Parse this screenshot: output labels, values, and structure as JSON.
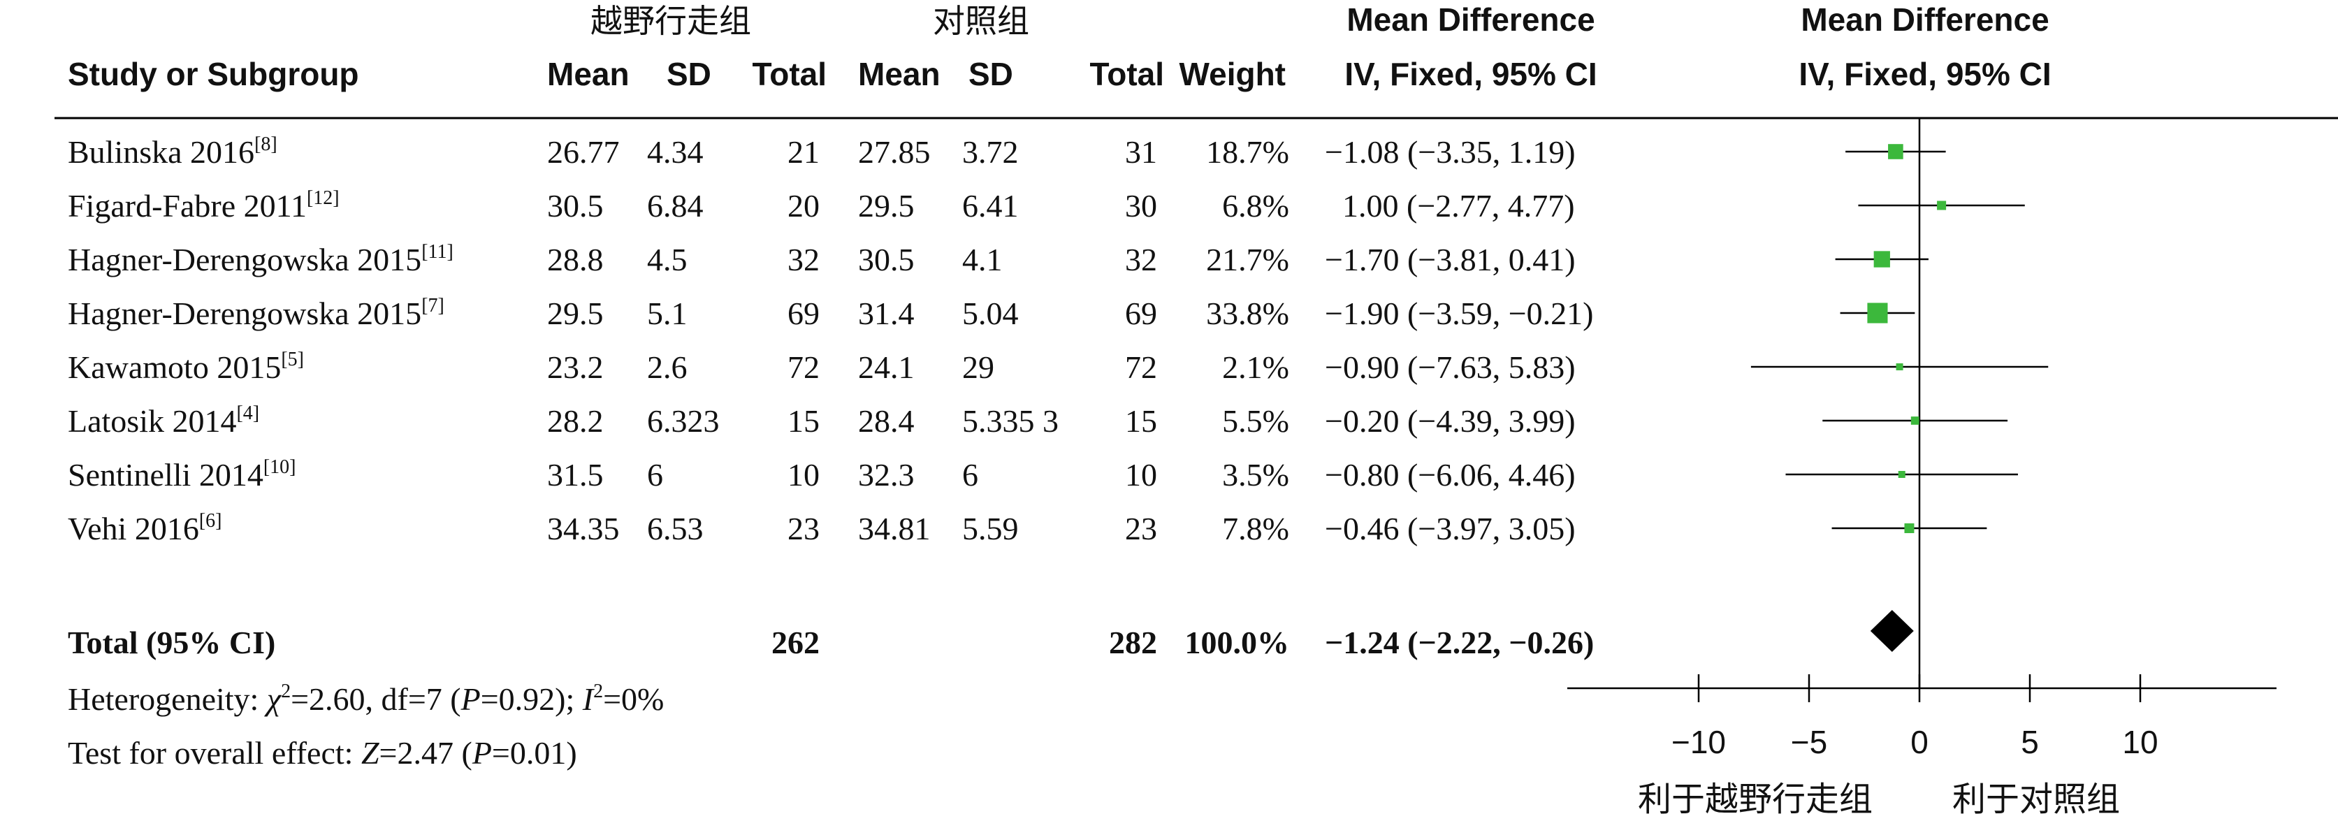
{
  "headers": {
    "group_exp": "越野行走组",
    "group_ctrl": "对照组",
    "study": "Study or Subgroup",
    "mean": "Mean",
    "sd": "SD",
    "total": "Total",
    "weight": "Weight",
    "md_title": "Mean Difference",
    "md_method": "IV, Fixed, 95% CI"
  },
  "rows": [
    {
      "study": "Bulinska 2016",
      "ref": "[8]",
      "e_mean": "26.77",
      "e_sd": "4.34",
      "e_total": "21",
      "c_mean": "27.85",
      "c_sd": "3.72",
      "c_total": "31",
      "weight": "18.7%",
      "ci_text": "−1.08 (−3.35, 1.19)"
    },
    {
      "study": "Figard-Fabre 2011",
      "ref": "[12]",
      "e_mean": "30.5",
      "e_sd": "6.84",
      "e_total": "20",
      "c_mean": "29.5",
      "c_sd": "6.41",
      "c_total": "30",
      "weight": "6.8%",
      "ci_text": "1.00 (−2.77, 4.77)"
    },
    {
      "study": "Hagner-Derengowska 2015",
      "ref": "[11]",
      "e_mean": "28.8",
      "e_sd": "4.5",
      "e_total": "32",
      "c_mean": "30.5",
      "c_sd": "4.1",
      "c_total": "32",
      "weight": "21.7%",
      "ci_text": "−1.70 (−3.81, 0.41)"
    },
    {
      "study": "Hagner-Derengowska 2015",
      "ref": "[7]",
      "e_mean": "29.5",
      "e_sd": "5.1",
      "e_total": "69",
      "c_mean": "31.4",
      "c_sd": "5.04",
      "c_total": "69",
      "weight": "33.8%",
      "ci_text": "−1.90 (−3.59, −0.21)"
    },
    {
      "study": "Kawamoto 2015",
      "ref": "[5]",
      "e_mean": "23.2",
      "e_sd": "2.6",
      "e_total": "72",
      "c_mean": "24.1",
      "c_sd": "29",
      "c_total": "72",
      "weight": "2.1%",
      "ci_text": "−0.90 (−7.63, 5.83)"
    },
    {
      "study": "Latosik 2014",
      "ref": "[4]",
      "e_mean": "28.2",
      "e_sd": "6.323",
      "e_total": "15",
      "c_mean": "28.4",
      "c_sd": "5.335 3",
      "c_total": "15",
      "weight": "5.5%",
      "ci_text": "−0.20 (−4.39, 3.99)"
    },
    {
      "study": "Sentinelli 2014",
      "ref": "[10]",
      "e_mean": "31.5",
      "e_sd": "6",
      "e_total": "10",
      "c_mean": "32.3",
      "c_sd": "6",
      "c_total": "10",
      "weight": "3.5%",
      "ci_text": "−0.80 (−6.06, 4.46)"
    },
    {
      "study": "Vehi 2016",
      "ref": "[6]",
      "e_mean": "34.35",
      "e_sd": "6.53",
      "e_total": "23",
      "c_mean": "34.81",
      "c_sd": "5.59",
      "c_total": "23",
      "weight": "7.8%",
      "ci_text": "−0.46 (−3.97, 3.05)"
    }
  ],
  "total": {
    "label": "Total (95% CI)",
    "e_total": "262",
    "c_total": "282",
    "weight": "100.0%",
    "ci_text": "−1.24 (−2.22, −0.26)"
  },
  "heterogeneity": {
    "prefix": "Heterogeneity: ",
    "chi": "χ",
    "chi_sup": "2",
    "chi_rest": "=2.60, df=7 (",
    "p": "P",
    "p_rest": "=0.92); ",
    "i": "I",
    "i_sup": "2",
    "i_rest": "=0%"
  },
  "overall_effect": {
    "prefix": "Test for overall effect: ",
    "z": "Z",
    "z_rest": "=2.47 (",
    "p": "P",
    "p_rest": "=0.01)"
  },
  "axis": {
    "favours_left": "利于越野行走组",
    "favours_right": "利于对照组"
  },
  "colors": {
    "study_marker": "#3cb83c",
    "pooled_marker": "#000000",
    "lines": "#000000"
  },
  "chart_data": {
    "type": "forest",
    "measure": "Mean Difference, IV, Fixed, 95% CI",
    "xlim": [
      -15,
      16
    ],
    "xticks": [
      -10,
      -5,
      0,
      5,
      10
    ],
    "studies": [
      {
        "name": "Bulinska 2016",
        "md": -1.08,
        "lower": -3.35,
        "upper": 1.19,
        "weight": 18.7
      },
      {
        "name": "Figard-Fabre 2011",
        "md": 1.0,
        "lower": -2.77,
        "upper": 4.77,
        "weight": 6.8
      },
      {
        "name": "Hagner-Derengowska 2015",
        "md": -1.7,
        "lower": -3.81,
        "upper": 0.41,
        "weight": 21.7
      },
      {
        "name": "Hagner-Derengowska 2015",
        "md": -1.9,
        "lower": -3.59,
        "upper": -0.21,
        "weight": 33.8
      },
      {
        "name": "Kawamoto 2015",
        "md": -0.9,
        "lower": -7.63,
        "upper": 5.83,
        "weight": 2.1
      },
      {
        "name": "Latosik 2014",
        "md": -0.2,
        "lower": -4.39,
        "upper": 3.99,
        "weight": 5.5
      },
      {
        "name": "Sentinelli 2014",
        "md": -0.8,
        "lower": -6.06,
        "upper": 4.46,
        "weight": 3.5
      },
      {
        "name": "Vehi 2016",
        "md": -0.46,
        "lower": -3.97,
        "upper": 3.05,
        "weight": 7.8
      }
    ],
    "pooled": {
      "md": -1.24,
      "lower": -2.22,
      "upper": -0.26,
      "weight": 100.0
    }
  }
}
